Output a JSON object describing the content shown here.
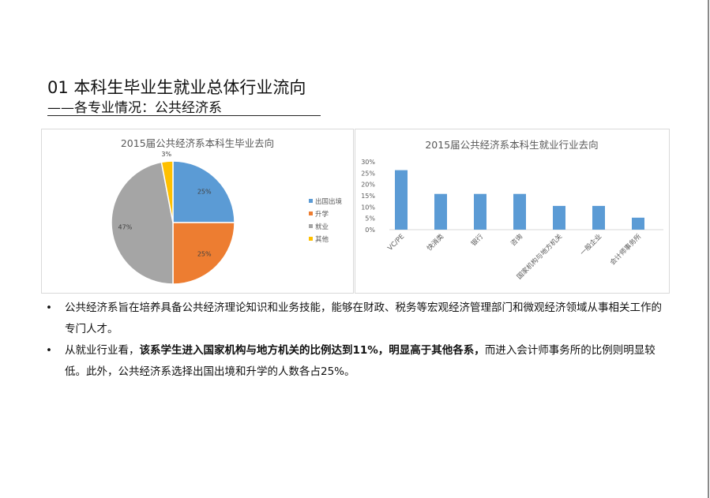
{
  "header": {
    "title": "01 本科生毕业生就业总体行业流向",
    "subtitle": "——各专业情况：公共经济系"
  },
  "chart_data": [
    {
      "type": "pie",
      "title": "2015届公共经济系本科生毕业去向",
      "labels": [
        "出国出境",
        "升学",
        "就业",
        "其他"
      ],
      "values": [
        25,
        25,
        47,
        3
      ],
      "data_labels": [
        "25%",
        "25%",
        "47%",
        "3%"
      ],
      "colors": [
        "#5B9BD5",
        "#ED7D31",
        "#A5A5A5",
        "#FFC000"
      ],
      "legend": "right"
    },
    {
      "type": "bar",
      "title": "2015届公共经济系本科生就业行业去向",
      "categories": [
        "VC/PE",
        "快消类",
        "银行",
        "咨询",
        "国家机构与地方机关",
        "一般企业",
        "会计师事务所"
      ],
      "values": [
        26.3,
        15.8,
        15.8,
        15.8,
        10.5,
        10.5,
        5.3
      ],
      "ylim": [
        0,
        30
      ],
      "yticks": [
        "0%",
        "5%",
        "10%",
        "15%",
        "20%",
        "25%",
        "30%"
      ],
      "color": "#5B9BD5",
      "grid": false
    }
  ],
  "bullets": [
    {
      "parts": [
        {
          "text": "公共经济系旨在培养具备公共经济理论知识和业务技能，能够在财政、税务等宏观经济管理部门和微观经济领域从事相关工作的专门人才。",
          "bold": false
        }
      ]
    },
    {
      "parts": [
        {
          "text": "从就业行业看，",
          "bold": false
        },
        {
          "text": "该系学生进入国家机构与地方机关的比例达到11%，明显高于其他各系，",
          "bold": true
        },
        {
          "text": "而进入会计师事务所的比例则明显较低。此外，公共经济系选择出国出境和升学的人数各占25%。",
          "bold": false
        }
      ]
    }
  ],
  "bullet_symbol": "•"
}
